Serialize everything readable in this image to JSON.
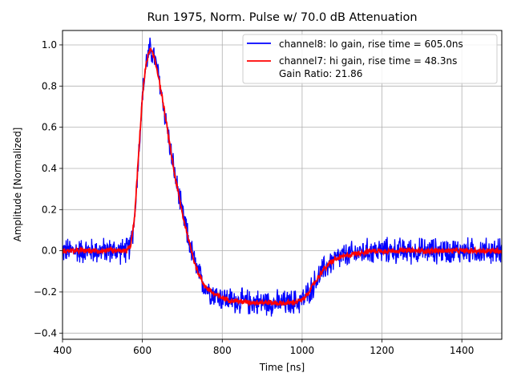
{
  "chart_data": {
    "type": "line",
    "title": "Run 1975, Norm. Pulse w/ 70.0 dB Attenuation",
    "xlabel": "Time [ns]",
    "ylabel": "Amplitude [Normalized]",
    "xlim": [
      400,
      1500
    ],
    "ylim": [
      -0.43,
      1.07
    ],
    "xticks": [
      400,
      600,
      800,
      1000,
      1200,
      1400
    ],
    "yticks": [
      -0.4,
      -0.2,
      0.0,
      0.2,
      0.4,
      0.6,
      0.8,
      1.0
    ],
    "xtick_labels": [
      "400",
      "600",
      "800",
      "1000",
      "1200",
      "1400"
    ],
    "ytick_labels": [
      "−0.4",
      "−0.2",
      "0.0",
      "0.2",
      "0.4",
      "0.6",
      "0.8",
      "1.0"
    ],
    "grid": true,
    "legend_position": "top-right",
    "series": [
      {
        "name": "channel8: lo gain, rise time = 605.0ns",
        "color": "#0000ff",
        "x": [
          400,
          420,
          440,
          460,
          480,
          500,
          520,
          540,
          560,
          570,
          580,
          590,
          600,
          610,
          620,
          630,
          640,
          650,
          660,
          670,
          680,
          690,
          700,
          710,
          720,
          730,
          740,
          750,
          760,
          780,
          800,
          820,
          840,
          860,
          880,
          900,
          920,
          940,
          960,
          980,
          1000,
          1010,
          1020,
          1030,
          1040,
          1050,
          1060,
          1070,
          1080,
          1100,
          1120,
          1140,
          1160,
          1180,
          1200,
          1240,
          1280,
          1320,
          1360,
          1400,
          1440,
          1480,
          1500
        ],
        "y": [
          0.0,
          0.0,
          0.0,
          0.0,
          0.0,
          0.0,
          0.0,
          0.0,
          0.0,
          0.02,
          0.15,
          0.45,
          0.75,
          0.92,
          0.98,
          0.94,
          0.85,
          0.74,
          0.62,
          0.5,
          0.38,
          0.28,
          0.18,
          0.1,
          0.02,
          -0.05,
          -0.11,
          -0.15,
          -0.18,
          -0.21,
          -0.23,
          -0.24,
          -0.245,
          -0.25,
          -0.25,
          -0.25,
          -0.252,
          -0.255,
          -0.255,
          -0.25,
          -0.24,
          -0.22,
          -0.19,
          -0.16,
          -0.13,
          -0.1,
          -0.08,
          -0.06,
          -0.045,
          -0.03,
          -0.02,
          -0.01,
          -0.005,
          0.0,
          0.0,
          0.0,
          0.0,
          0.0,
          0.0,
          0.0,
          0.0,
          0.0,
          0.0
        ],
        "noise_amplitude": 0.05
      },
      {
        "name": "channel7: hi gain, rise time = 48.3ns",
        "color": "#ff0000",
        "x": [
          400,
          420,
          440,
          460,
          480,
          500,
          520,
          540,
          560,
          570,
          580,
          590,
          600,
          610,
          620,
          630,
          640,
          650,
          660,
          670,
          680,
          690,
          700,
          710,
          720,
          730,
          740,
          750,
          760,
          780,
          800,
          820,
          840,
          860,
          880,
          900,
          920,
          940,
          960,
          980,
          1000,
          1010,
          1020,
          1030,
          1040,
          1050,
          1060,
          1070,
          1080,
          1100,
          1120,
          1140,
          1160,
          1180,
          1200,
          1240,
          1280,
          1320,
          1360,
          1400,
          1440,
          1480,
          1500
        ],
        "y": [
          0.0,
          0.0,
          0.0,
          0.0,
          0.0,
          0.0,
          0.0,
          0.0,
          0.0,
          0.02,
          0.15,
          0.45,
          0.75,
          0.92,
          0.98,
          0.94,
          0.85,
          0.74,
          0.62,
          0.5,
          0.38,
          0.28,
          0.18,
          0.1,
          0.02,
          -0.05,
          -0.11,
          -0.15,
          -0.18,
          -0.21,
          -0.23,
          -0.24,
          -0.245,
          -0.25,
          -0.25,
          -0.25,
          -0.252,
          -0.255,
          -0.255,
          -0.25,
          -0.24,
          -0.22,
          -0.19,
          -0.16,
          -0.13,
          -0.1,
          -0.08,
          -0.06,
          -0.045,
          -0.03,
          -0.02,
          -0.01,
          -0.005,
          0.0,
          0.0,
          0.0,
          0.0,
          0.0,
          0.0,
          0.0,
          0.0,
          0.0,
          0.0
        ],
        "noise_amplitude": 0.01
      }
    ],
    "legend_extra_text": "Gain Ratio: 21.86"
  }
}
